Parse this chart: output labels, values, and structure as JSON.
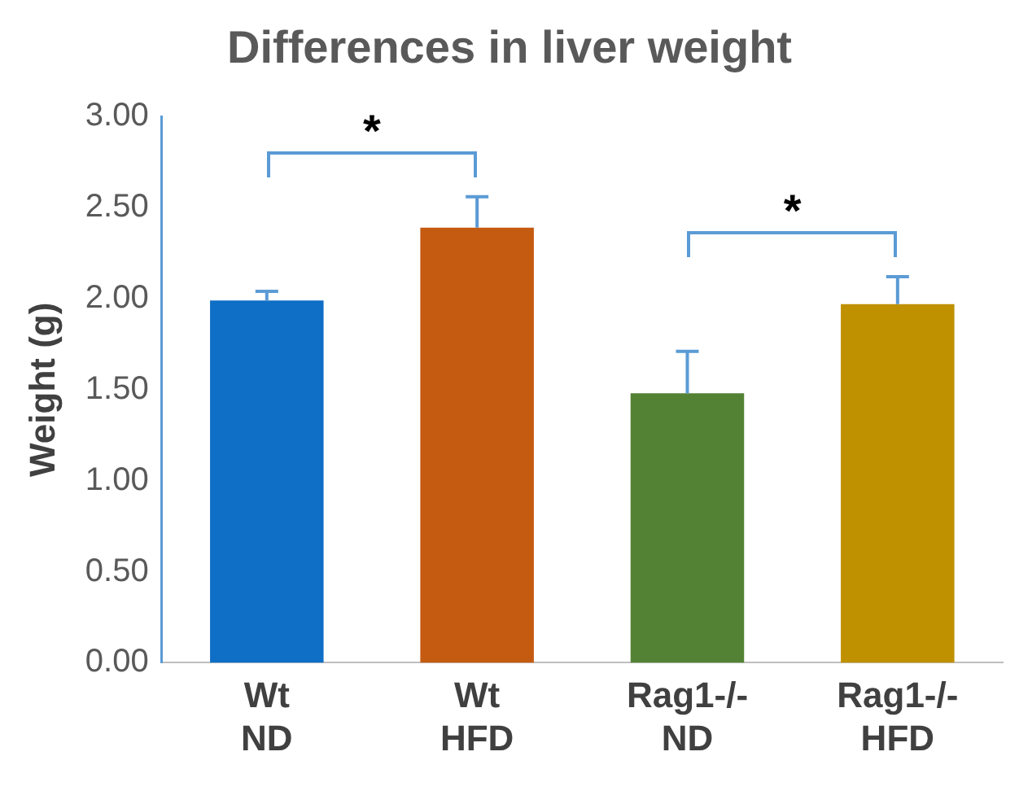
{
  "chart_data": {
    "type": "bar",
    "title": "Differences in liver weight",
    "ylabel": "Weight (g)",
    "categories": [
      "Wt ND",
      "Wt HFD",
      "Rag1-/- ND",
      "Rag1-/- HFD"
    ],
    "values": [
      1.99,
      2.39,
      1.48,
      1.97
    ],
    "colors": [
      "#0f6fc6",
      "#c55a11",
      "#548235",
      "#bf9000"
    ],
    "errors": [
      [
        1.99,
        2.04
      ],
      [
        2.39,
        2.56
      ],
      [
        1.48,
        1.71
      ],
      [
        1.97,
        2.12
      ]
    ],
    "ylim": [
      0,
      3
    ],
    "yticks": [
      {
        "value": 0,
        "label": "0.00"
      },
      {
        "value": 0.5,
        "label": "0.50"
      },
      {
        "value": 1,
        "label": "1.00"
      },
      {
        "value": 1.5,
        "label": "1.50"
      },
      {
        "value": 2,
        "label": "2.00"
      },
      {
        "value": 2.5,
        "label": "2.50"
      },
      {
        "value": 3,
        "label": "3.00"
      }
    ],
    "annotations": [
      "*",
      "*"
    ],
    "grid": false,
    "legend": false
  }
}
